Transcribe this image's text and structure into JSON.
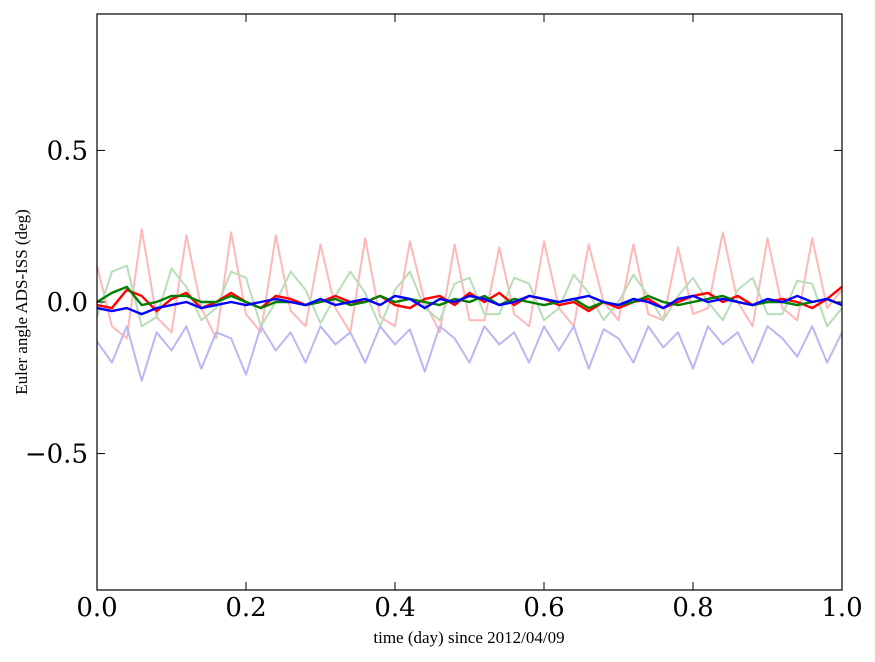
{
  "chart_data": {
    "type": "line",
    "xlabel": "time (day) since 2012/04/09",
    "ylabel": "Euler angle ADS-ISS (deg)",
    "xlim": [
      0.0,
      1.0
    ],
    "ylim": [
      -0.95,
      0.95
    ],
    "grid": false,
    "x_ticks": [
      {
        "value": 0.0,
        "label": "0.0"
      },
      {
        "value": 0.2,
        "label": "0.2"
      },
      {
        "value": 0.4,
        "label": "0.4"
      },
      {
        "value": 0.6,
        "label": "0.6"
      },
      {
        "value": 0.8,
        "label": "0.8"
      },
      {
        "value": 1.0,
        "label": "1.0"
      }
    ],
    "y_ticks": [
      {
        "value": -0.5,
        "label": "−0.5"
      },
      {
        "value": 0.0,
        "label": "0.0"
      },
      {
        "value": 0.5,
        "label": "0.5"
      }
    ],
    "x": [
      0.0,
      0.02,
      0.04,
      0.06,
      0.08,
      0.1,
      0.12,
      0.14,
      0.16,
      0.18,
      0.2,
      0.22,
      0.24,
      0.26,
      0.28,
      0.3,
      0.32,
      0.34,
      0.36,
      0.38,
      0.4,
      0.42,
      0.44,
      0.46,
      0.48,
      0.5,
      0.52,
      0.54,
      0.56,
      0.58,
      0.6,
      0.62,
      0.64,
      0.66,
      0.68,
      0.7,
      0.72,
      0.74,
      0.76,
      0.78,
      0.8,
      0.82,
      0.84,
      0.86,
      0.88,
      0.9,
      0.92,
      0.94,
      0.96,
      0.98,
      1.0
    ],
    "series": [
      {
        "color": "#ffb8b8",
        "values": [
          0.12,
          -0.08,
          -0.12,
          0.24,
          -0.05,
          -0.1,
          0.22,
          -0.02,
          -0.12,
          0.23,
          -0.04,
          -0.1,
          0.22,
          -0.03,
          -0.08,
          0.19,
          -0.02,
          -0.1,
          0.21,
          -0.05,
          -0.08,
          0.2,
          0.0,
          -0.1,
          0.19,
          -0.06,
          -0.06,
          0.18,
          -0.04,
          -0.08,
          0.2,
          -0.02,
          -0.08,
          0.19,
          0.0,
          -0.06,
          0.19,
          -0.04,
          -0.06,
          0.18,
          -0.04,
          -0.02,
          0.23,
          0.0,
          -0.08,
          0.21,
          -0.02,
          -0.06,
          0.21,
          -0.02,
          0.04
        ]
      },
      {
        "color": "#b8deb8",
        "values": [
          -0.05,
          0.1,
          0.12,
          -0.08,
          -0.05,
          0.11,
          0.05,
          -0.06,
          -0.02,
          0.1,
          0.08,
          -0.08,
          0.0,
          0.1,
          0.04,
          -0.07,
          0.02,
          0.1,
          0.03,
          -0.08,
          0.04,
          0.1,
          -0.02,
          -0.06,
          0.06,
          0.08,
          -0.04,
          -0.04,
          0.08,
          0.06,
          -0.06,
          -0.02,
          0.09,
          0.03,
          -0.06,
          0.0,
          0.09,
          0.02,
          -0.06,
          0.02,
          0.08,
          0.0,
          -0.06,
          0.04,
          0.08,
          -0.04,
          -0.04,
          0.07,
          0.06,
          -0.08,
          -0.02
        ]
      },
      {
        "color": "#b8b8f4",
        "values": [
          -0.13,
          -0.2,
          -0.08,
          -0.26,
          -0.1,
          -0.16,
          -0.08,
          -0.22,
          -0.1,
          -0.12,
          -0.24,
          -0.08,
          -0.16,
          -0.1,
          -0.2,
          -0.08,
          -0.14,
          -0.1,
          -0.2,
          -0.08,
          -0.14,
          -0.09,
          -0.23,
          -0.08,
          -0.12,
          -0.2,
          -0.08,
          -0.14,
          -0.1,
          -0.2,
          -0.08,
          -0.16,
          -0.08,
          -0.22,
          -0.09,
          -0.12,
          -0.2,
          -0.08,
          -0.15,
          -0.1,
          -0.22,
          -0.08,
          -0.14,
          -0.1,
          -0.2,
          -0.08,
          -0.12,
          -0.18,
          -0.08,
          -0.2,
          -0.1
        ]
      },
      {
        "color": "#ff0000",
        "values": [
          -0.01,
          -0.02,
          0.04,
          0.02,
          -0.03,
          0.01,
          0.03,
          -0.02,
          0.0,
          0.03,
          0.0,
          -0.02,
          0.02,
          0.01,
          -0.01,
          0.0,
          0.02,
          0.0,
          0.0,
          0.02,
          -0.01,
          -0.02,
          0.01,
          0.02,
          -0.01,
          0.03,
          0.0,
          0.03,
          -0.01,
          0.02,
          0.01,
          -0.01,
          0.0,
          -0.03,
          0.0,
          -0.02,
          0.0,
          0.01,
          -0.02,
          0.0,
          0.02,
          0.03,
          0.0,
          0.02,
          -0.01,
          0.0,
          0.01,
          0.0,
          -0.02,
          0.01,
          0.05
        ]
      },
      {
        "color": "#007f00",
        "values": [
          0.0,
          0.03,
          0.05,
          -0.01,
          0.0,
          0.02,
          0.02,
          0.0,
          0.0,
          0.02,
          0.0,
          -0.02,
          0.0,
          0.0,
          -0.01,
          0.0,
          0.01,
          -0.01,
          0.0,
          0.02,
          0.0,
          0.01,
          0.0,
          -0.01,
          0.01,
          0.0,
          0.02,
          -0.01,
          0.01,
          0.0,
          -0.01,
          0.0,
          0.01,
          -0.02,
          0.0,
          -0.01,
          0.0,
          0.02,
          0.0,
          -0.01,
          0.0,
          0.01,
          0.02,
          0.0,
          -0.01,
          0.0,
          0.0,
          -0.01,
          0.0,
          0.01,
          -0.01
        ]
      },
      {
        "color": "#0000ff",
        "values": [
          -0.02,
          -0.03,
          -0.02,
          -0.04,
          -0.02,
          -0.01,
          0.0,
          -0.02,
          -0.01,
          0.0,
          -0.01,
          0.0,
          0.01,
          0.0,
          -0.01,
          0.01,
          -0.01,
          0.0,
          0.01,
          -0.01,
          0.02,
          0.01,
          -0.02,
          0.01,
          0.0,
          0.02,
          0.01,
          -0.01,
          0.0,
          0.02,
          0.01,
          0.0,
          0.01,
          0.02,
          0.0,
          -0.01,
          0.01,
          0.0,
          -0.02,
          0.01,
          0.02,
          0.0,
          0.01,
          0.0,
          -0.01,
          0.01,
          0.0,
          0.02,
          0.0,
          0.01,
          -0.01
        ]
      }
    ]
  }
}
